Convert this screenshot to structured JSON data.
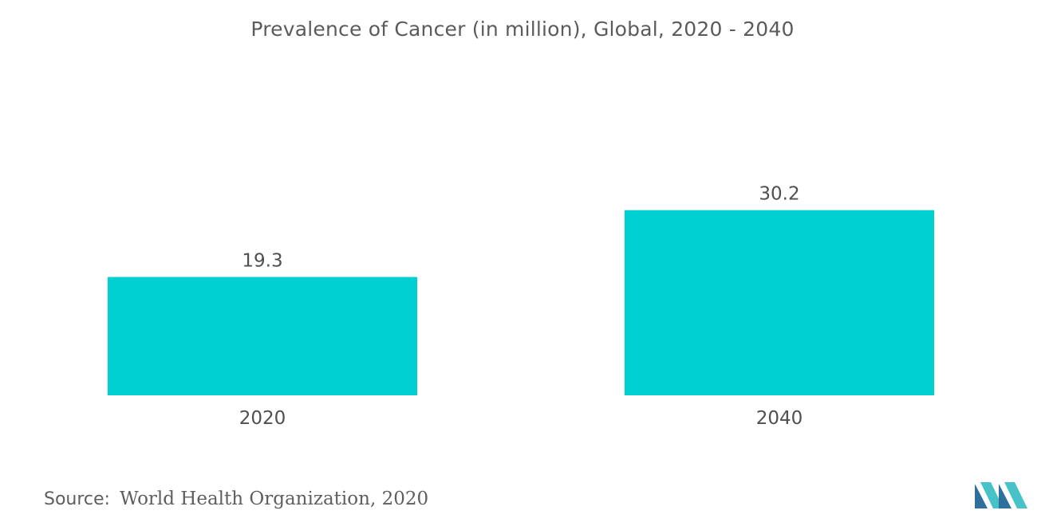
{
  "chart_data": {
    "type": "bar",
    "title": "Prevalence of Cancer (in million), Global, 2020 - 2040",
    "categories": [
      "2020",
      "2040"
    ],
    "values": [
      19.3,
      30.2
    ],
    "data_labels": [
      "19.3",
      "30.2"
    ],
    "xlabel": "",
    "ylabel": "",
    "ylim": [
      0,
      39
    ],
    "grid": false,
    "bar_color": "#00cfd1"
  },
  "footer": {
    "source_label": "Source:",
    "source_text": "World Health Organization, 2020"
  },
  "colors": {
    "bar": "#00cfd1",
    "text": "#5b5b5b",
    "logo_dark": "#2e6f9e",
    "logo_light": "#47c3c8"
  }
}
